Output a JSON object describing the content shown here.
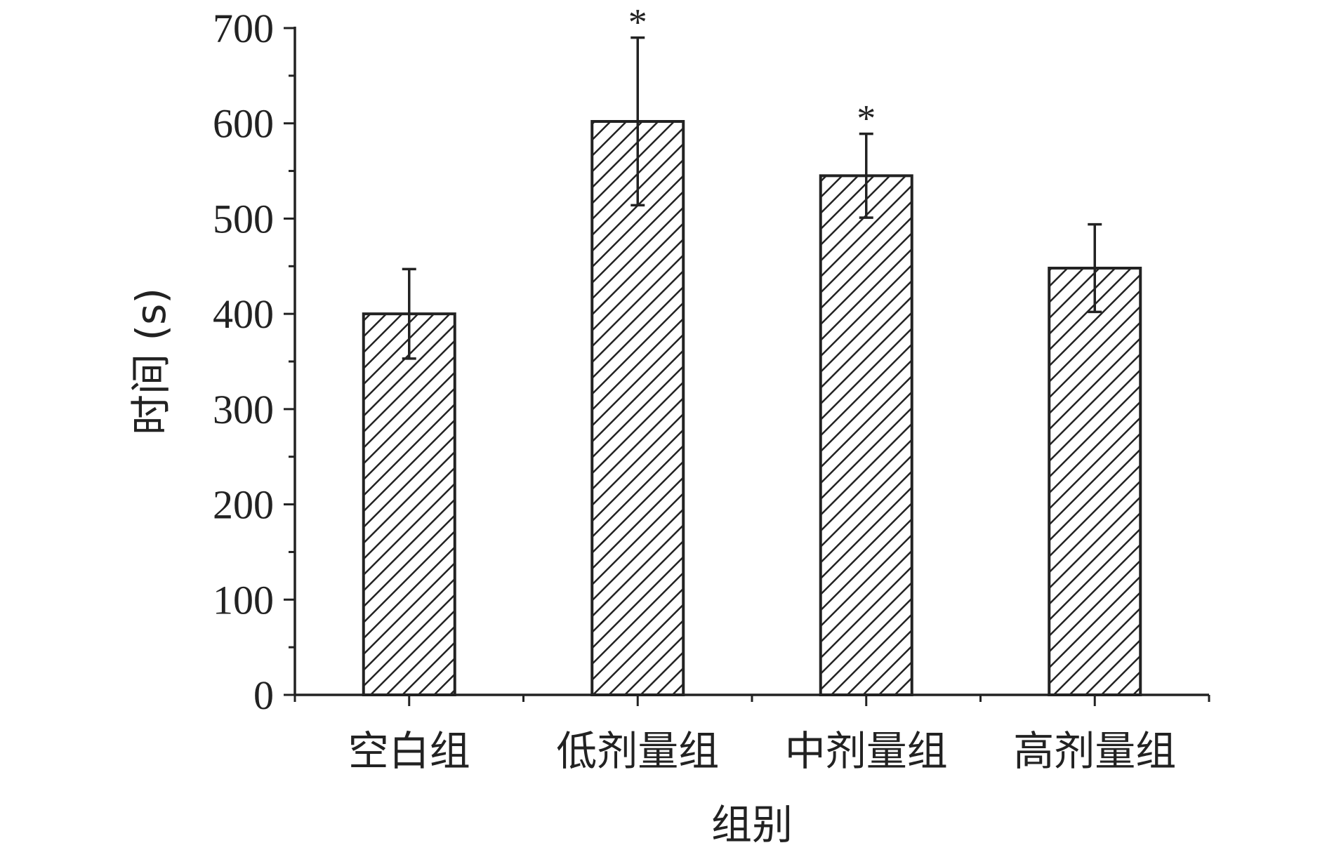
{
  "chart_data": {
    "type": "bar",
    "categories": [
      "空白组",
      "低剂量组",
      "中剂量组",
      "高剂量组"
    ],
    "values": [
      400,
      602,
      545,
      448
    ],
    "errors": [
      47,
      88,
      44,
      46
    ],
    "significance": [
      "",
      "*",
      "*",
      ""
    ],
    "xlabel": "组别",
    "ylabel": "时间 (s)",
    "ylim": [
      0,
      700
    ],
    "yticks": [
      0,
      100,
      200,
      300,
      400,
      500,
      600,
      700
    ],
    "bar_pattern": "diagonal-hatch",
    "grid": false,
    "legend": "none",
    "colors": {
      "ink": "#222222",
      "bar_fill": "#ffffff"
    }
  }
}
